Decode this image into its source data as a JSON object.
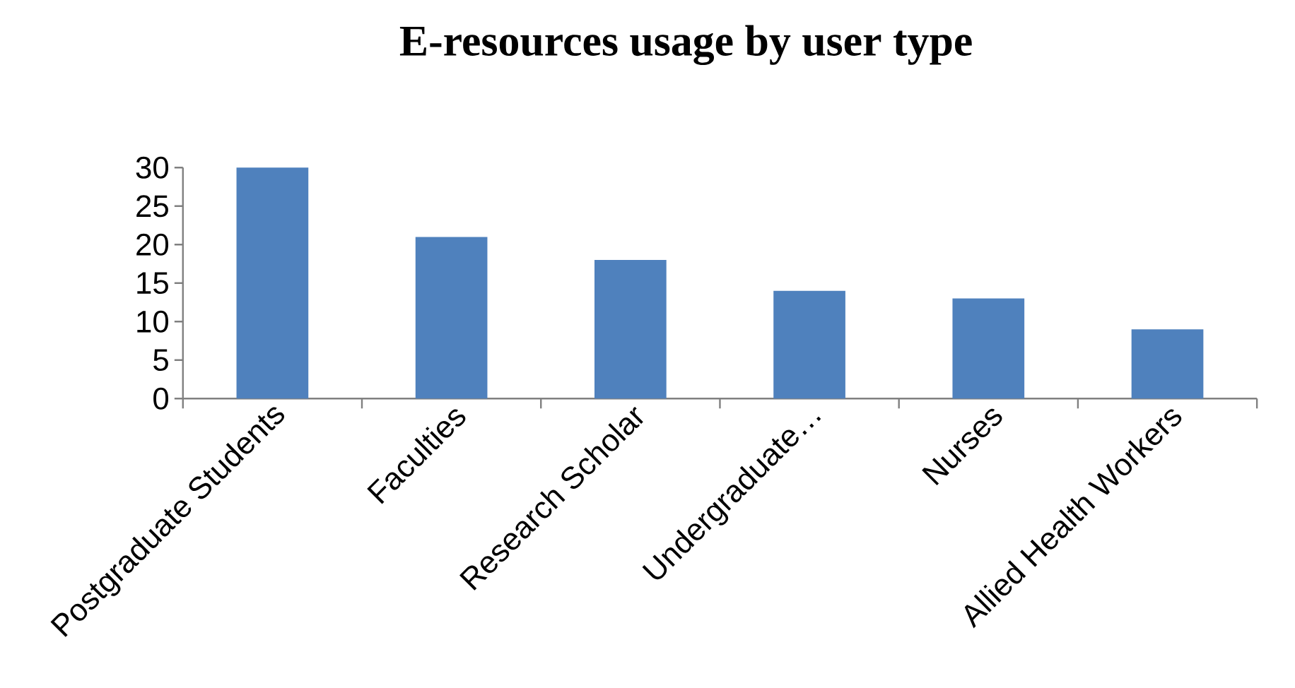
{
  "chart_data": {
    "type": "bar",
    "title": "E-resources usage by user type",
    "categories": [
      "Postgraduate Students",
      "Faculties",
      "Research Scholar",
      "Undergraduate…",
      "Nurses",
      "Allied Health Workers"
    ],
    "values": [
      30,
      21,
      18,
      14,
      13,
      9
    ],
    "color": "#4f81bd",
    "ylim": [
      0,
      30
    ],
    "yticks": [
      0,
      5,
      10,
      15,
      20,
      25,
      30
    ]
  }
}
